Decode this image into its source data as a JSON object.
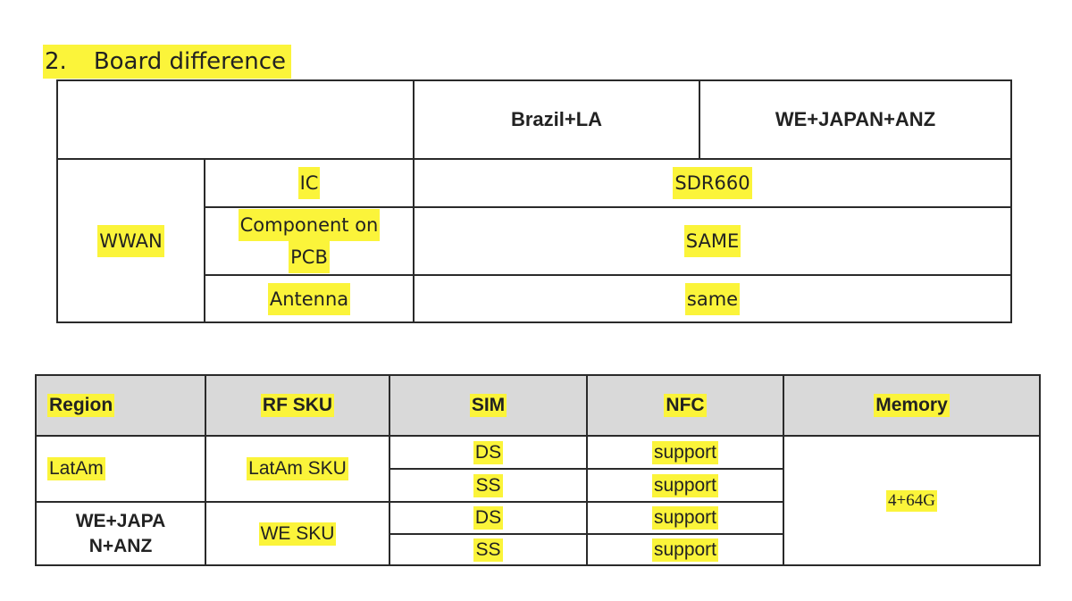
{
  "section": {
    "number": "2.",
    "title": "Board difference"
  },
  "board_table": {
    "headers": [
      "",
      "Brazil+LA",
      "WE+JAPAN+ANZ"
    ],
    "group": "WWAN",
    "rows": [
      {
        "item": "IC",
        "value": "SDR660"
      },
      {
        "item_line1": "Component on",
        "item_line2": "PCB",
        "value": "SAME"
      },
      {
        "item": "Antenna",
        "value": "same"
      }
    ]
  },
  "sku_table": {
    "headers": [
      "Region",
      "RF SKU",
      "SIM",
      "NFC",
      "Memory"
    ],
    "regions": [
      {
        "region": "LatAm",
        "rf_sku": "LatAm SKU",
        "sims": [
          "DS",
          "SS"
        ],
        "nfc": [
          "support",
          "support"
        ]
      },
      {
        "region_line1": "WE+JAPA",
        "region_line2": "N+ANZ",
        "rf_sku": "WE SKU",
        "sims": [
          "DS",
          "SS"
        ],
        "nfc": [
          "support",
          "support"
        ]
      }
    ],
    "memory": "4+64G"
  },
  "colors": {
    "highlight": "#fbf43a",
    "header_bg": "#d9d9d9"
  }
}
